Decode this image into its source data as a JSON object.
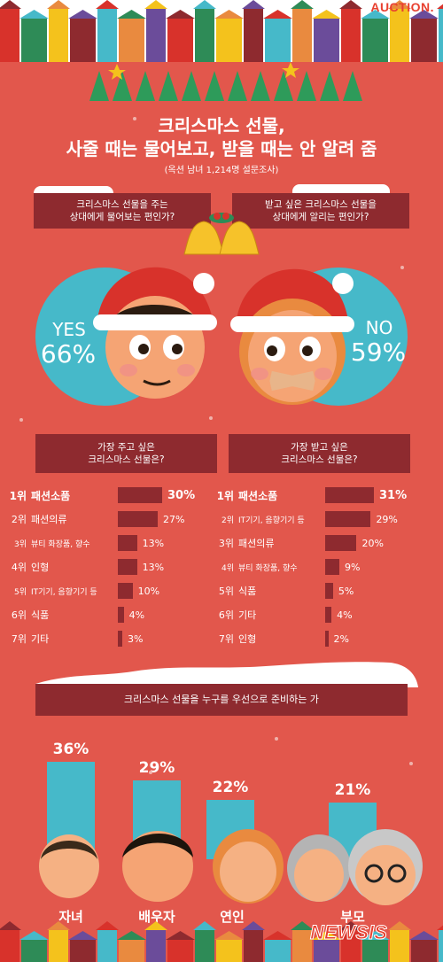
{
  "brand": "AUCTION.",
  "title": {
    "line1": "크리스마스 선물,",
    "line2": "사줄 때는 물어보고, 받을 때는 안 알려 줌",
    "subtitle": "(옥션 남녀 1,214명 설문조사)"
  },
  "question_left": {
    "line1": "크리스마스 선물을 주는",
    "line2": "상대에게 물어보는 편인가?",
    "answer": "YES",
    "percent": "66%",
    "value": 66
  },
  "question_right": {
    "line1": "받고 싶은 크리스마스 선물을",
    "line2": "상대에게 알리는 편인가?",
    "answer": "NO",
    "percent": "59%",
    "value": 59
  },
  "give_ranking": {
    "header_line1": "가장 주고 싶은",
    "header_line2": "크리스마스 선물은?",
    "items": [
      {
        "rank": "1위",
        "item": "패션소품",
        "value": 30,
        "label": "30%"
      },
      {
        "rank": "2위",
        "item": "패션의류",
        "value": 27,
        "label": "27%"
      },
      {
        "rank": "3위",
        "item": "뷰티 화장품, 향수",
        "value": 13,
        "label": "13%"
      },
      {
        "rank": "4위",
        "item": "인형",
        "value": 13,
        "label": "13%"
      },
      {
        "rank": "5위",
        "item": "IT기기, 음향기기 등",
        "value": 10,
        "label": "10%"
      },
      {
        "rank": "6위",
        "item": "식품",
        "value": 4,
        "label": "4%"
      },
      {
        "rank": "7위",
        "item": "기타",
        "value": 3,
        "label": "3%"
      }
    ]
  },
  "receive_ranking": {
    "header_line1": "가장 받고 싶은",
    "header_line2": "크리스마스 선물은?",
    "items": [
      {
        "rank": "1위",
        "item": "패션소품",
        "value": 31,
        "label": "31%"
      },
      {
        "rank": "2위",
        "item": "IT기기, 음향기기 등",
        "value": 29,
        "label": "29%"
      },
      {
        "rank": "3위",
        "item": "패션의류",
        "value": 20,
        "label": "20%"
      },
      {
        "rank": "4위",
        "item": "뷰티 화장품, 향수",
        "value": 9,
        "label": "9%"
      },
      {
        "rank": "5위",
        "item": "식품",
        "value": 5,
        "label": "5%"
      },
      {
        "rank": "6위",
        "item": "기타",
        "value": 4,
        "label": "4%"
      },
      {
        "rank": "7위",
        "item": "인형",
        "value": 2,
        "label": "2%"
      }
    ]
  },
  "priority": {
    "header": "크리스마스 선물을 누구를 우선으로 준비하는 가",
    "items": [
      {
        "name": "자녀",
        "value": 36,
        "label": "36%"
      },
      {
        "name": "배우자",
        "value": 29,
        "label": "29%"
      },
      {
        "name": "연인",
        "value": 22,
        "label": "22%"
      },
      {
        "name": "부모",
        "value": 21,
        "label": "21%"
      }
    ]
  },
  "watermark": "NEWSIS",
  "colors": {
    "background": "#e2574c",
    "ribbon": "#8e2a2f",
    "accent": "#46b9c9",
    "brand": "#e8402f"
  }
}
